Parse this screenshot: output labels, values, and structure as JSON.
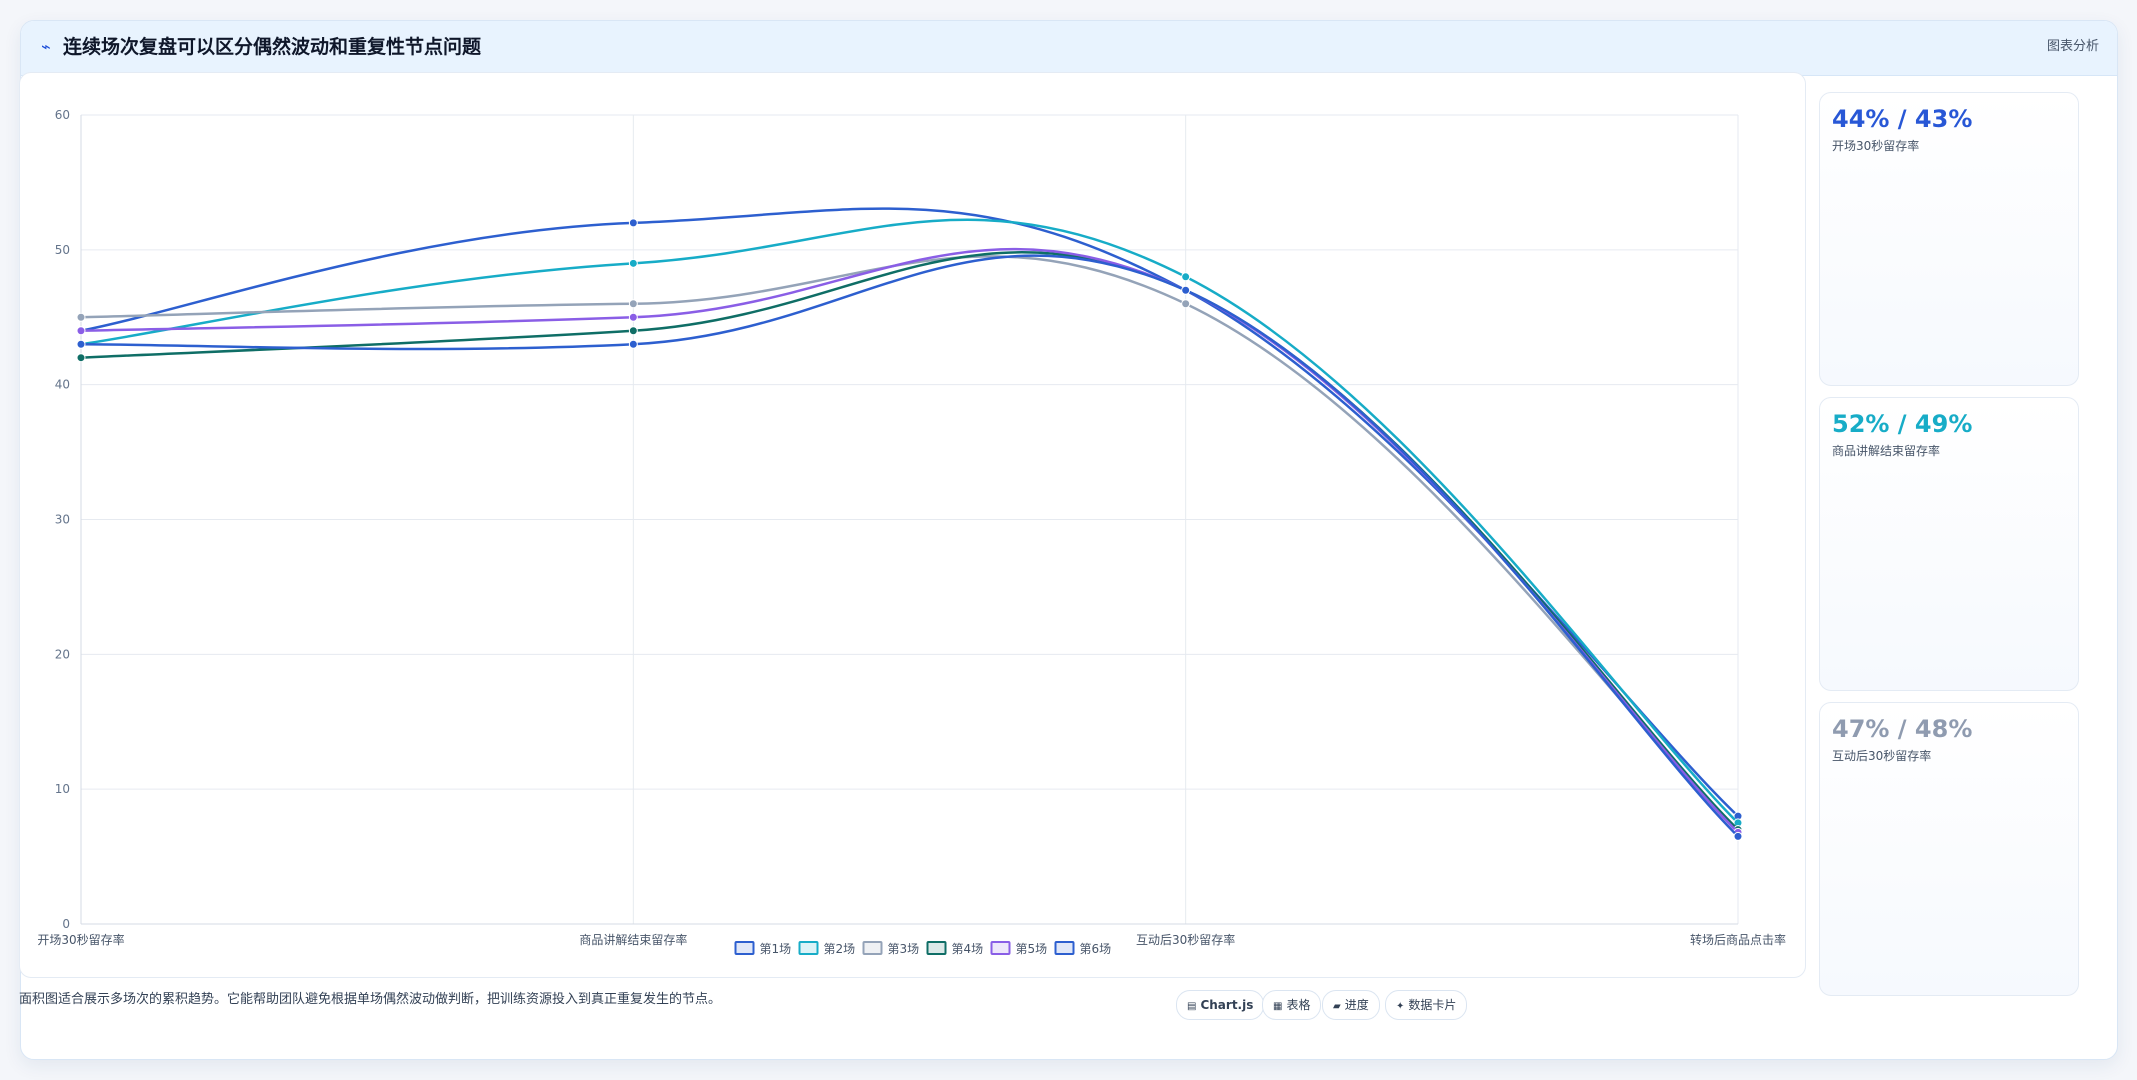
{
  "header": {
    "icon": "chart-line-icon",
    "title": "连续场次复盘可以区分偶然波动和重复性节点问题",
    "action_label": "图表分析"
  },
  "chart_data": {
    "type": "line",
    "categories": [
      "开场30秒留存率",
      "商品讲解结束留存率",
      "互动后30秒留存率",
      "转场后商品点击率"
    ],
    "ylim": [
      0,
      60
    ],
    "yticks": [
      0,
      10,
      20,
      30,
      40,
      50,
      60
    ],
    "grid": true,
    "legend_position": "bottom",
    "series": [
      {
        "name": "第1场",
        "values": [
          44,
          52,
          47,
          8
        ],
        "color": "#2d5fcf"
      },
      {
        "name": "第2场",
        "values": [
          43,
          49,
          48,
          7.5
        ],
        "color": "#17acc7"
      },
      {
        "name": "第3场",
        "values": [
          45,
          46,
          46,
          7
        ],
        "color": "#94a3b8"
      },
      {
        "name": "第4场",
        "values": [
          42,
          44,
          47,
          7
        ],
        "color": "#0f6e66"
      },
      {
        "name": "第5场",
        "values": [
          44,
          45,
          47,
          6.8
        ],
        "color": "#8a5ee6"
      },
      {
        "name": "第6场",
        "values": [
          43,
          43,
          47,
          6.5
        ],
        "color": "#2d5fcf"
      }
    ]
  },
  "side_cards": [
    {
      "value": "44% / 43%",
      "label": "开场30秒留存率",
      "color": "#2857d6"
    },
    {
      "value": "52% / 49%",
      "label": "商品讲解结束留存率",
      "color": "#17acc7"
    },
    {
      "value": "47% / 48%",
      "label": "互动后30秒留存率",
      "color": "#8f9bb0"
    }
  ],
  "footer": {
    "note": "面积图适合展示多场次的累积趋势。它能帮助团队避免根据单场偶然波动做判断，把训练资源投入到真正重复发生的节点。",
    "chips": [
      {
        "icon": "chart-icon",
        "label": "Chart.js"
      },
      {
        "icon": "table-icon",
        "label": "表格"
      },
      {
        "icon": "progress-icon",
        "label": "进度"
      },
      {
        "icon": "sparkle-icon",
        "label": "数据卡片"
      }
    ]
  }
}
